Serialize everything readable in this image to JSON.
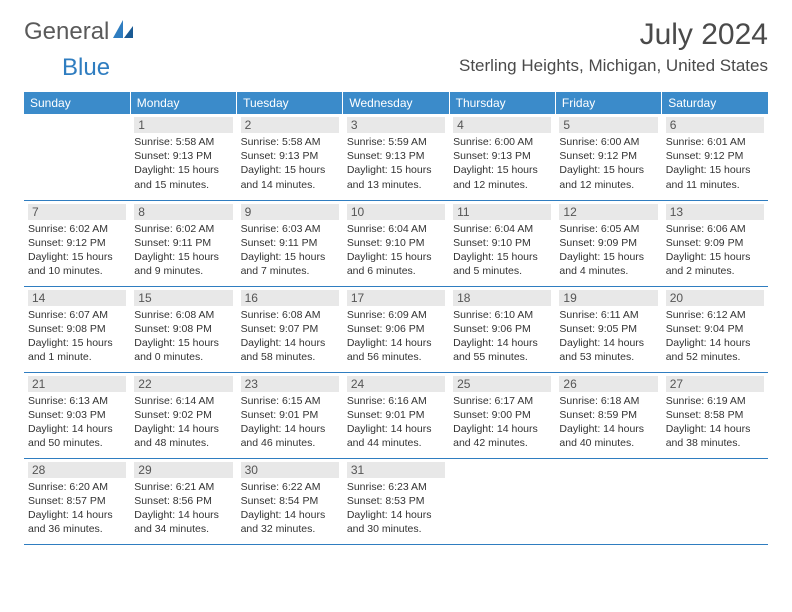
{
  "logo": {
    "part1": "General",
    "part2": "Blue"
  },
  "title": "July 2024",
  "location": "Sterling Heights, Michigan, United States",
  "colors": {
    "header_bg": "#3b8bca",
    "header_text": "#ffffff",
    "rule": "#2f7dc0",
    "daynum_bg": "#e8e8e8",
    "text": "#333333",
    "logo_blue": "#2f7dc0",
    "logo_gray": "#5a5a5a"
  },
  "day_headers": [
    "Sunday",
    "Monday",
    "Tuesday",
    "Wednesday",
    "Thursday",
    "Friday",
    "Saturday"
  ],
  "weeks": [
    [
      null,
      {
        "n": "1",
        "sr": "Sunrise: 5:58 AM",
        "ss": "Sunset: 9:13 PM",
        "d1": "Daylight: 15 hours",
        "d2": "and 15 minutes."
      },
      {
        "n": "2",
        "sr": "Sunrise: 5:58 AM",
        "ss": "Sunset: 9:13 PM",
        "d1": "Daylight: 15 hours",
        "d2": "and 14 minutes."
      },
      {
        "n": "3",
        "sr": "Sunrise: 5:59 AM",
        "ss": "Sunset: 9:13 PM",
        "d1": "Daylight: 15 hours",
        "d2": "and 13 minutes."
      },
      {
        "n": "4",
        "sr": "Sunrise: 6:00 AM",
        "ss": "Sunset: 9:13 PM",
        "d1": "Daylight: 15 hours",
        "d2": "and 12 minutes."
      },
      {
        "n": "5",
        "sr": "Sunrise: 6:00 AM",
        "ss": "Sunset: 9:12 PM",
        "d1": "Daylight: 15 hours",
        "d2": "and 12 minutes."
      },
      {
        "n": "6",
        "sr": "Sunrise: 6:01 AM",
        "ss": "Sunset: 9:12 PM",
        "d1": "Daylight: 15 hours",
        "d2": "and 11 minutes."
      }
    ],
    [
      {
        "n": "7",
        "sr": "Sunrise: 6:02 AM",
        "ss": "Sunset: 9:12 PM",
        "d1": "Daylight: 15 hours",
        "d2": "and 10 minutes."
      },
      {
        "n": "8",
        "sr": "Sunrise: 6:02 AM",
        "ss": "Sunset: 9:11 PM",
        "d1": "Daylight: 15 hours",
        "d2": "and 9 minutes."
      },
      {
        "n": "9",
        "sr": "Sunrise: 6:03 AM",
        "ss": "Sunset: 9:11 PM",
        "d1": "Daylight: 15 hours",
        "d2": "and 7 minutes."
      },
      {
        "n": "10",
        "sr": "Sunrise: 6:04 AM",
        "ss": "Sunset: 9:10 PM",
        "d1": "Daylight: 15 hours",
        "d2": "and 6 minutes."
      },
      {
        "n": "11",
        "sr": "Sunrise: 6:04 AM",
        "ss": "Sunset: 9:10 PM",
        "d1": "Daylight: 15 hours",
        "d2": "and 5 minutes."
      },
      {
        "n": "12",
        "sr": "Sunrise: 6:05 AM",
        "ss": "Sunset: 9:09 PM",
        "d1": "Daylight: 15 hours",
        "d2": "and 4 minutes."
      },
      {
        "n": "13",
        "sr": "Sunrise: 6:06 AM",
        "ss": "Sunset: 9:09 PM",
        "d1": "Daylight: 15 hours",
        "d2": "and 2 minutes."
      }
    ],
    [
      {
        "n": "14",
        "sr": "Sunrise: 6:07 AM",
        "ss": "Sunset: 9:08 PM",
        "d1": "Daylight: 15 hours",
        "d2": "and 1 minute."
      },
      {
        "n": "15",
        "sr": "Sunrise: 6:08 AM",
        "ss": "Sunset: 9:08 PM",
        "d1": "Daylight: 15 hours",
        "d2": "and 0 minutes."
      },
      {
        "n": "16",
        "sr": "Sunrise: 6:08 AM",
        "ss": "Sunset: 9:07 PM",
        "d1": "Daylight: 14 hours",
        "d2": "and 58 minutes."
      },
      {
        "n": "17",
        "sr": "Sunrise: 6:09 AM",
        "ss": "Sunset: 9:06 PM",
        "d1": "Daylight: 14 hours",
        "d2": "and 56 minutes."
      },
      {
        "n": "18",
        "sr": "Sunrise: 6:10 AM",
        "ss": "Sunset: 9:06 PM",
        "d1": "Daylight: 14 hours",
        "d2": "and 55 minutes."
      },
      {
        "n": "19",
        "sr": "Sunrise: 6:11 AM",
        "ss": "Sunset: 9:05 PM",
        "d1": "Daylight: 14 hours",
        "d2": "and 53 minutes."
      },
      {
        "n": "20",
        "sr": "Sunrise: 6:12 AM",
        "ss": "Sunset: 9:04 PM",
        "d1": "Daylight: 14 hours",
        "d2": "and 52 minutes."
      }
    ],
    [
      {
        "n": "21",
        "sr": "Sunrise: 6:13 AM",
        "ss": "Sunset: 9:03 PM",
        "d1": "Daylight: 14 hours",
        "d2": "and 50 minutes."
      },
      {
        "n": "22",
        "sr": "Sunrise: 6:14 AM",
        "ss": "Sunset: 9:02 PM",
        "d1": "Daylight: 14 hours",
        "d2": "and 48 minutes."
      },
      {
        "n": "23",
        "sr": "Sunrise: 6:15 AM",
        "ss": "Sunset: 9:01 PM",
        "d1": "Daylight: 14 hours",
        "d2": "and 46 minutes."
      },
      {
        "n": "24",
        "sr": "Sunrise: 6:16 AM",
        "ss": "Sunset: 9:01 PM",
        "d1": "Daylight: 14 hours",
        "d2": "and 44 minutes."
      },
      {
        "n": "25",
        "sr": "Sunrise: 6:17 AM",
        "ss": "Sunset: 9:00 PM",
        "d1": "Daylight: 14 hours",
        "d2": "and 42 minutes."
      },
      {
        "n": "26",
        "sr": "Sunrise: 6:18 AM",
        "ss": "Sunset: 8:59 PM",
        "d1": "Daylight: 14 hours",
        "d2": "and 40 minutes."
      },
      {
        "n": "27",
        "sr": "Sunrise: 6:19 AM",
        "ss": "Sunset: 8:58 PM",
        "d1": "Daylight: 14 hours",
        "d2": "and 38 minutes."
      }
    ],
    [
      {
        "n": "28",
        "sr": "Sunrise: 6:20 AM",
        "ss": "Sunset: 8:57 PM",
        "d1": "Daylight: 14 hours",
        "d2": "and 36 minutes."
      },
      {
        "n": "29",
        "sr": "Sunrise: 6:21 AM",
        "ss": "Sunset: 8:56 PM",
        "d1": "Daylight: 14 hours",
        "d2": "and 34 minutes."
      },
      {
        "n": "30",
        "sr": "Sunrise: 6:22 AM",
        "ss": "Sunset: 8:54 PM",
        "d1": "Daylight: 14 hours",
        "d2": "and 32 minutes."
      },
      {
        "n": "31",
        "sr": "Sunrise: 6:23 AM",
        "ss": "Sunset: 8:53 PM",
        "d1": "Daylight: 14 hours",
        "d2": "and 30 minutes."
      },
      null,
      null,
      null
    ]
  ]
}
